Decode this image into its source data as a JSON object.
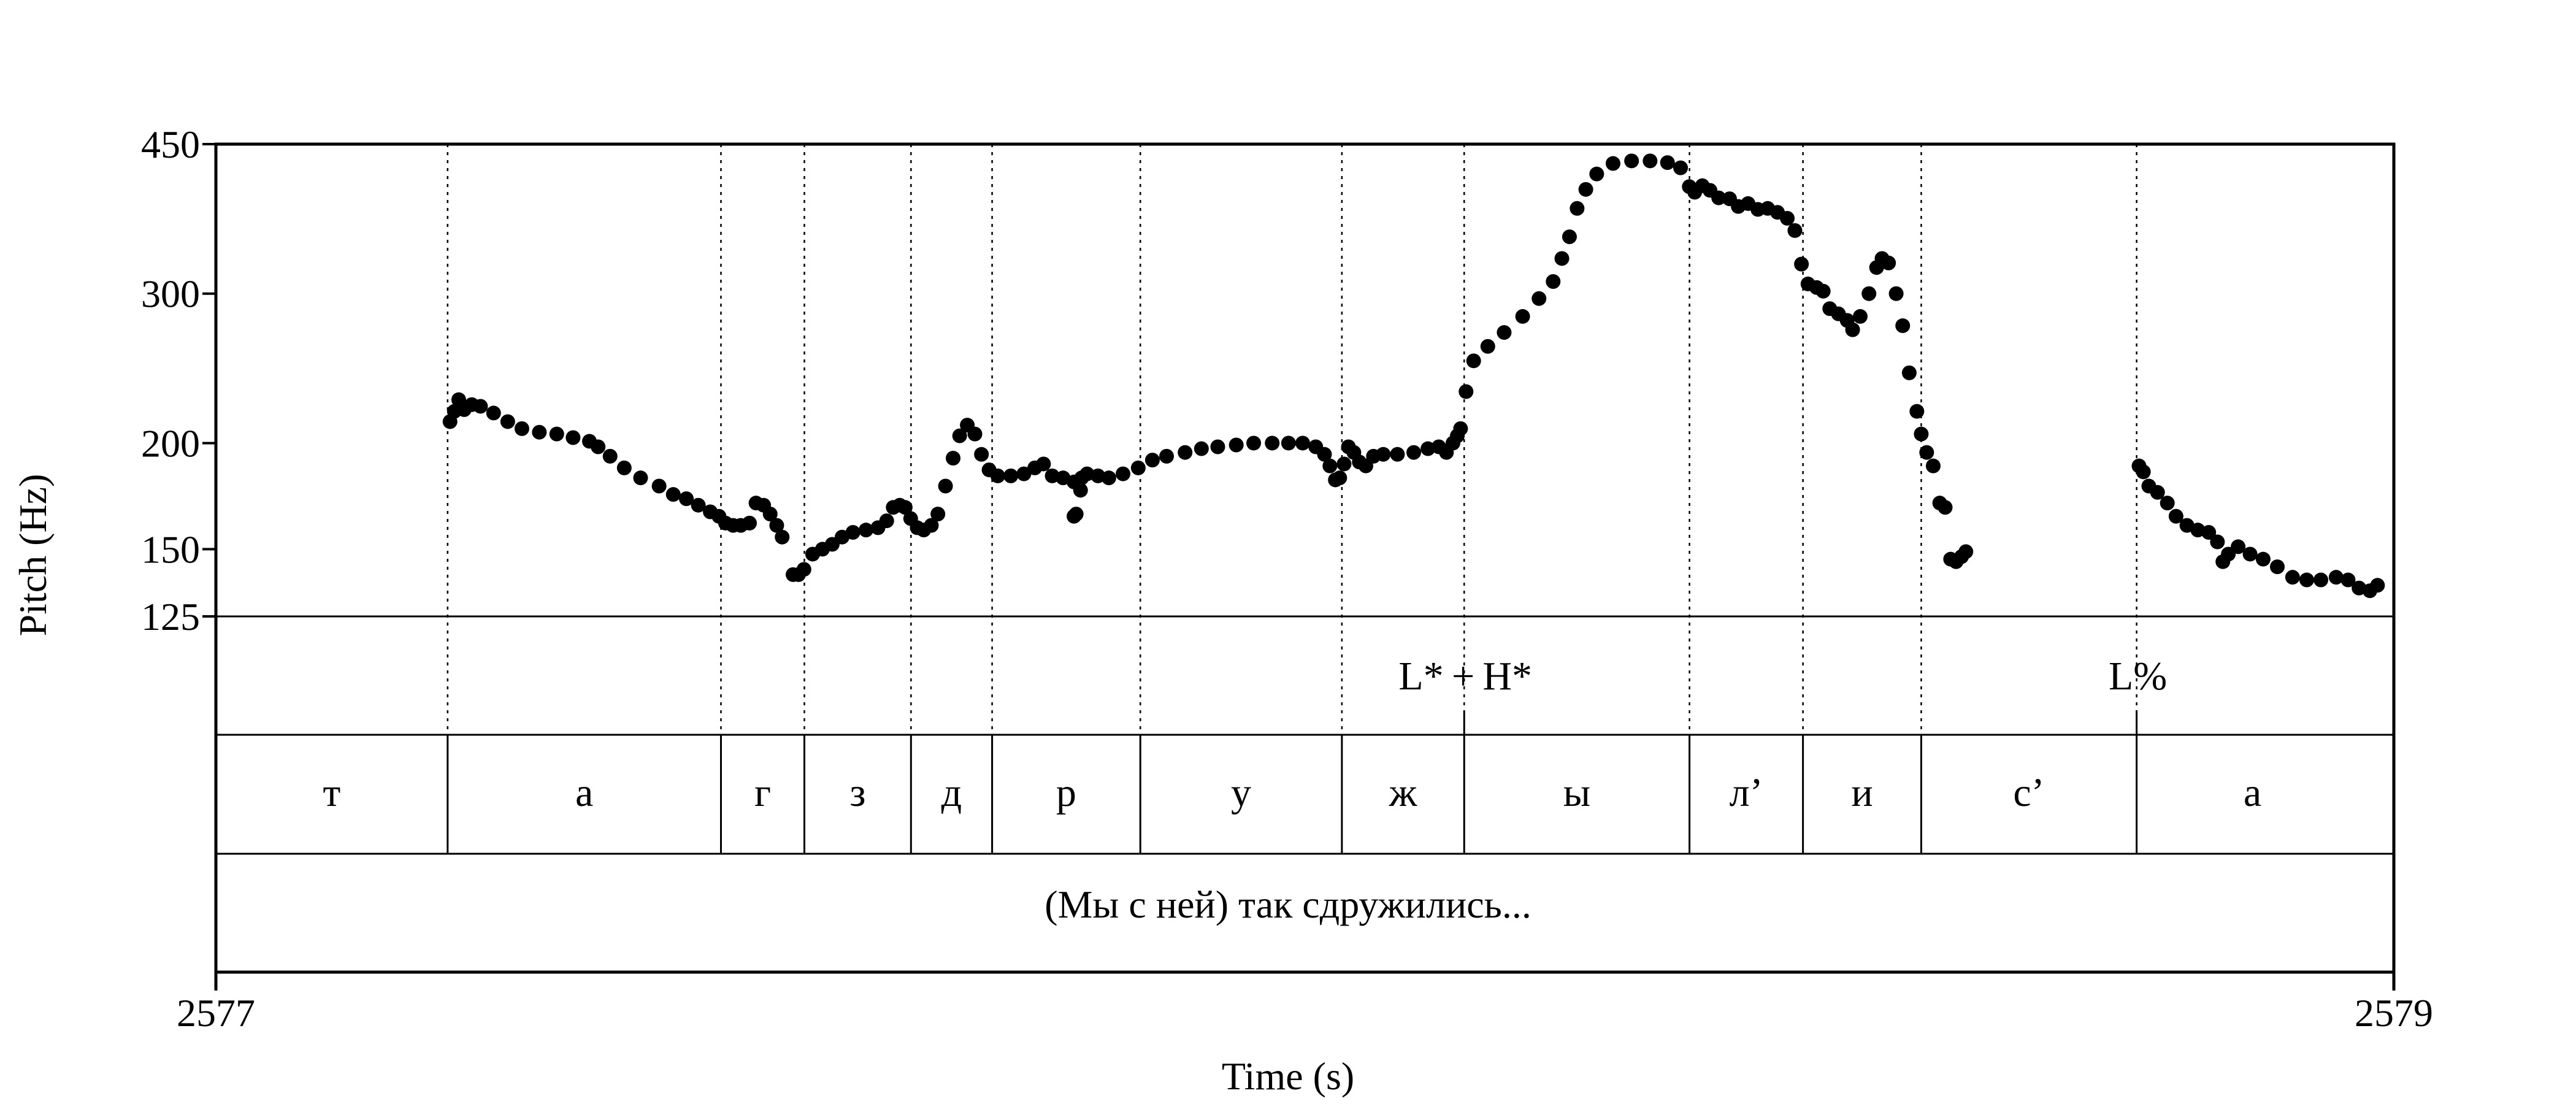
{
  "chart_data": {
    "type": "scatter",
    "xlabel": "Time (s)",
    "ylabel": "Pitch (Hz)",
    "x_ticks": [
      "2577",
      "2579"
    ],
    "xlim": [
      2577,
      2579
    ],
    "y_ticks": [
      {
        "value": 125,
        "label": "125"
      },
      {
        "value": 150,
        "label": "150"
      },
      {
        "value": 200,
        "label": "200"
      },
      {
        "value": 300,
        "label": "300"
      },
      {
        "value": 450,
        "label": "450"
      }
    ],
    "ylim": [
      125,
      450
    ],
    "y_scale": "log",
    "grid": false,
    "tones": [
      {
        "t": 2578.1463,
        "label": "L* + H*"
      },
      {
        "t": 2578.7638,
        "label": "L%"
      }
    ],
    "segments": [
      {
        "start": 2577.0,
        "end": 2577.2128,
        "label": "т"
      },
      {
        "start": 2577.2128,
        "end": 2577.4638,
        "label": "а"
      },
      {
        "start": 2577.4638,
        "end": 2577.5404,
        "label": "г"
      },
      {
        "start": 2577.5404,
        "end": 2577.6383,
        "label": "з"
      },
      {
        "start": 2577.6383,
        "end": 2577.7128,
        "label": "д"
      },
      {
        "start": 2577.7128,
        "end": 2577.8489,
        "label": "р"
      },
      {
        "start": 2577.8489,
        "end": 2578.034,
        "label": "у"
      },
      {
        "start": 2578.034,
        "end": 2578.1463,
        "label": "ж"
      },
      {
        "start": 2578.1463,
        "end": 2578.3532,
        "label": "ы"
      },
      {
        "start": 2578.3532,
        "end": 2578.4574,
        "label": "л’"
      },
      {
        "start": 2578.4574,
        "end": 2578.566,
        "label": "и"
      },
      {
        "start": 2578.566,
        "end": 2578.7638,
        "label": "с’"
      },
      {
        "start": 2578.7638,
        "end": 2578.9766,
        "label": "а"
      }
    ],
    "phrase": "(Мы с ней) так сдружились...",
    "pitch_tracks": [
      [
        [
          2577.215,
          212
        ],
        [
          2577.219,
          218
        ],
        [
          2577.223,
          225
        ],
        [
          2577.228,
          219
        ],
        [
          2577.235,
          222
        ],
        [
          2577.243,
          221
        ],
        [
          2577.255,
          217
        ],
        [
          2577.268,
          212
        ],
        [
          2577.281,
          208
        ],
        [
          2577.297,
          206
        ],
        [
          2577.313,
          205
        ],
        [
          2577.328,
          203
        ],
        [
          2577.343,
          201
        ],
        [
          2577.351,
          198
        ],
        [
          2577.362,
          193
        ],
        [
          2577.375,
          187
        ],
        [
          2577.39,
          182
        ],
        [
          2577.407,
          178
        ],
        [
          2577.42,
          174
        ],
        [
          2577.432,
          172
        ],
        [
          2577.443,
          169
        ],
        [
          2577.454,
          166
        ],
        [
          2577.462,
          164
        ],
        [
          2577.468,
          161
        ],
        [
          2577.475,
          160
        ],
        [
          2577.482,
          160
        ],
        [
          2577.49,
          161
        ],
        [
          2577.496,
          170
        ],
        [
          2577.503,
          169
        ],
        [
          2577.509,
          165
        ],
        [
          2577.515,
          160
        ],
        [
          2577.52,
          155
        ]
      ],
      [
        [
          2577.53,
          140
        ],
        [
          2577.535,
          140
        ],
        [
          2577.54,
          142
        ],
        [
          2577.548,
          148
        ],
        [
          2577.557,
          150
        ],
        [
          2577.566,
          152
        ],
        [
          2577.575,
          155
        ],
        [
          2577.585,
          157
        ],
        [
          2577.597,
          158
        ],
        [
          2577.608,
          159
        ],
        [
          2577.616,
          162
        ],
        [
          2577.622,
          168
        ],
        [
          2577.628,
          169
        ],
        [
          2577.633,
          168
        ],
        [
          2577.638,
          163
        ],
        [
          2577.644,
          159
        ],
        [
          2577.65,
          158
        ],
        [
          2577.657,
          160
        ],
        [
          2577.663,
          165
        ],
        [
          2577.67,
          178
        ],
        [
          2577.677,
          192
        ],
        [
          2577.683,
          204
        ],
        [
          2577.69,
          210
        ],
        [
          2577.697,
          205
        ],
        [
          2577.703,
          194
        ],
        [
          2577.71,
          186
        ],
        [
          2577.718,
          183
        ],
        [
          2577.73,
          183
        ],
        [
          2577.742,
          184
        ],
        [
          2577.752,
          187
        ],
        [
          2577.76,
          189
        ],
        [
          2577.768,
          183
        ],
        [
          2577.778,
          182
        ],
        [
          2577.788,
          180
        ],
        [
          2577.794,
          176
        ]
      ],
      [
        [
          2577.788,
          164
        ],
        [
          2577.79,
          165
        ],
        [
          2577.795,
          182
        ],
        [
          2577.8,
          184
        ],
        [
          2577.81,
          183
        ],
        [
          2577.82,
          182
        ],
        [
          2577.833,
          184
        ],
        [
          2577.847,
          187
        ],
        [
          2577.86,
          191
        ],
        [
          2577.873,
          193
        ],
        [
          2577.89,
          195
        ],
        [
          2577.905,
          197
        ],
        [
          2577.92,
          198
        ],
        [
          2577.937,
          199
        ],
        [
          2577.953,
          200
        ],
        [
          2577.97,
          200
        ],
        [
          2577.985,
          200
        ],
        [
          2577.998,
          200
        ],
        [
          2578.01,
          198
        ],
        [
          2578.018,
          194
        ],
        [
          2578.023,
          188
        ],
        [
          2578.028,
          181
        ],
        [
          2578.032,
          182
        ],
        [
          2578.036,
          189
        ],
        [
          2578.04,
          198
        ],
        [
          2578.045,
          195
        ],
        [
          2578.05,
          190
        ],
        [
          2578.056,
          188
        ],
        [
          2578.063,
          193
        ],
        [
          2578.072,
          194
        ],
        [
          2578.085,
          194
        ],
        [
          2578.1,
          195
        ],
        [
          2578.113,
          197
        ],
        [
          2578.123,
          198
        ],
        [
          2578.13,
          195
        ],
        [
          2578.136,
          200
        ],
        [
          2578.14,
          204
        ],
        [
          2578.143,
          208
        ]
      ],
      [
        [
          2578.148,
          230
        ],
        [
          2578.155,
          250
        ],
        [
          2578.168,
          260
        ],
        [
          2578.183,
          270
        ],
        [
          2578.2,
          282
        ],
        [
          2578.215,
          296
        ],
        [
          2578.228,
          310
        ],
        [
          2578.236,
          330
        ],
        [
          2578.243,
          350
        ],
        [
          2578.25,
          378
        ],
        [
          2578.258,
          398
        ],
        [
          2578.268,
          415
        ],
        [
          2578.283,
          427
        ],
        [
          2578.3,
          430
        ],
        [
          2578.317,
          430
        ],
        [
          2578.333,
          428
        ],
        [
          2578.345,
          422
        ],
        [
          2578.353,
          401
        ],
        [
          2578.358,
          395
        ],
        [
          2578.365,
          402
        ],
        [
          2578.372,
          397
        ],
        [
          2578.38,
          389
        ],
        [
          2578.39,
          388
        ],
        [
          2578.398,
          380
        ],
        [
          2578.407,
          383
        ],
        [
          2578.416,
          377
        ],
        [
          2578.425,
          378
        ],
        [
          2578.434,
          374
        ],
        [
          2578.443,
          368
        ],
        [
          2578.45,
          356
        ],
        [
          2578.456,
          325
        ],
        [
          2578.462,
          308
        ],
        [
          2578.47,
          305
        ],
        [
          2578.476,
          302
        ],
        [
          2578.482,
          288
        ],
        [
          2578.49,
          284
        ],
        [
          2578.498,
          279
        ],
        [
          2578.503,
          272
        ],
        [
          2578.51,
          282
        ],
        [
          2578.518,
          300
        ],
        [
          2578.525,
          322
        ],
        [
          2578.53,
          330
        ],
        [
          2578.536,
          326
        ],
        [
          2578.543,
          300
        ],
        [
          2578.549,
          275
        ],
        [
          2578.555,
          242
        ],
        [
          2578.562,
          218
        ],
        [
          2578.566,
          205
        ],
        [
          2578.571,
          195
        ],
        [
          2578.577,
          188
        ],
        [
          2578.583,
          170
        ],
        [
          2578.588,
          168
        ],
        [
          2578.593,
          146
        ],
        [
          2578.598,
          145
        ],
        [
          2578.603,
          147
        ],
        [
          2578.607,
          149
        ]
      ],
      [
        [
          2578.766,
          188
        ],
        [
          2578.77,
          185
        ],
        [
          2578.775,
          178
        ],
        [
          2578.783,
          175
        ],
        [
          2578.792,
          170
        ],
        [
          2578.8,
          164
        ],
        [
          2578.81,
          160
        ],
        [
          2578.82,
          158
        ],
        [
          2578.83,
          157
        ],
        [
          2578.838,
          153
        ],
        [
          2578.843,
          145
        ],
        [
          2578.848,
          148
        ],
        [
          2578.857,
          151
        ],
        [
          2578.868,
          148
        ],
        [
          2578.88,
          146
        ],
        [
          2578.893,
          143
        ],
        [
          2578.907,
          139
        ],
        [
          2578.92,
          138
        ],
        [
          2578.933,
          138
        ],
        [
          2578.947,
          139
        ],
        [
          2578.958,
          138
        ],
        [
          2578.968,
          135
        ],
        [
          2578.978,
          134
        ],
        [
          2578.985,
          136
        ]
      ]
    ]
  }
}
